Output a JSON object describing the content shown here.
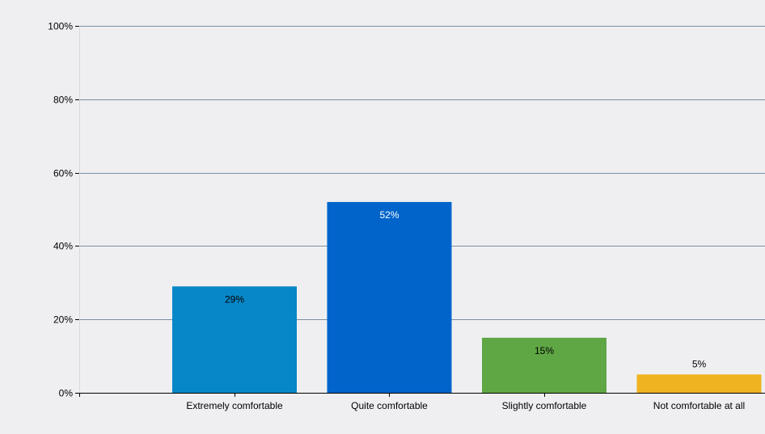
{
  "chart_data": {
    "type": "bar",
    "title": "",
    "xlabel": "",
    "ylabel": "",
    "categories": [
      "Extremely comfortable",
      "Quite comfortable",
      "Slightly comfortable",
      "Not comfortable at all"
    ],
    "values": [
      29,
      52,
      15,
      5
    ],
    "data_labels": [
      "29%",
      "52%",
      "15%",
      "5%"
    ],
    "bar_colors": [
      "#0787c7",
      "#0064cb",
      "#5fa745",
      "#efb321"
    ],
    "data_label_colors": [
      "#000000",
      "#ffffff",
      "#000000",
      "#000000"
    ],
    "ylim": [
      0,
      100
    ],
    "y_ticks": [
      0,
      20,
      40,
      60,
      80,
      100
    ],
    "y_tick_labels": [
      "0%",
      "20%",
      "40%",
      "60%",
      "80%",
      "100%"
    ],
    "grid": true,
    "legend": "none",
    "background_color": "#efeff2",
    "gridline_color": "#7a8fa3",
    "axis_color": "#000000"
  }
}
